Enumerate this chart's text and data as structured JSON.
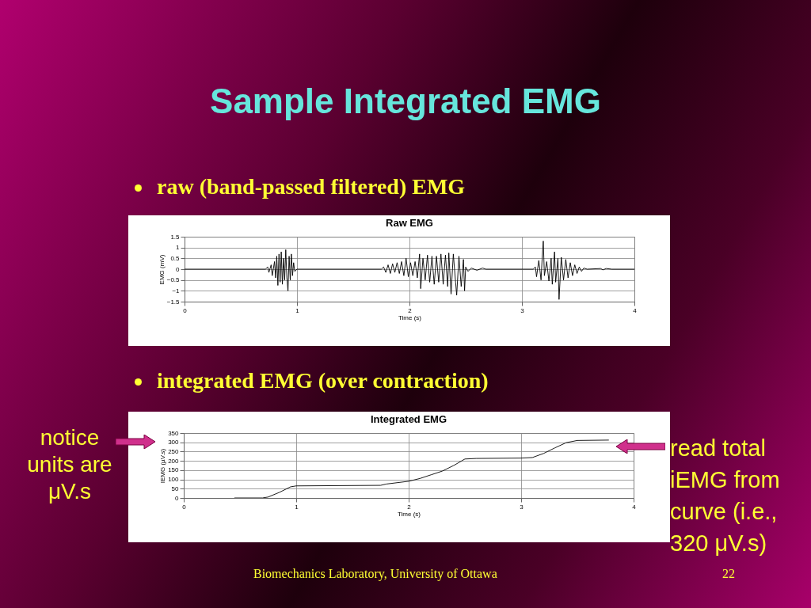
{
  "chart_data": [
    {
      "type": "line",
      "title": "Raw EMG",
      "xlabel": "Time (s)",
      "ylabel": "EMG (mV)",
      "xlim": [
        0,
        4
      ],
      "xticks": [
        0,
        1,
        2,
        3,
        4
      ],
      "ylim": [
        -1.5,
        1.5
      ],
      "yticks": [
        -1.5,
        -1,
        -0.5,
        0,
        0.5,
        1,
        1.5
      ],
      "grid": true,
      "annotations": [
        "Sample Integrated EMG",
        "raw (band-passed filtered) EMG",
        "Biomechanics Laboratory, University of Ottawa",
        "22"
      ],
      "series": [
        {
          "color": "#000000",
          "x": [
            0,
            0.5,
            0.72,
            0.74,
            0.75,
            0.77,
            0.78,
            0.8,
            0.81,
            0.82,
            0.83,
            0.84,
            0.85,
            0.86,
            0.87,
            0.88,
            0.89,
            0.9,
            0.91,
            0.92,
            0.93,
            0.94,
            0.95,
            0.96,
            0.97,
            0.98,
            1,
            1.5,
            1.75,
            1.77,
            1.79,
            1.81,
            1.83,
            1.85,
            1.87,
            1.89,
            1.91,
            1.93,
            1.95,
            1.97,
            1.99,
            2.01,
            2.03,
            2.05,
            2.07,
            2.09,
            2.1,
            2.12,
            2.14,
            2.16,
            2.18,
            2.2,
            2.22,
            2.24,
            2.26,
            2.28,
            2.3,
            2.32,
            2.34,
            2.35,
            2.37,
            2.39,
            2.41,
            2.42,
            2.44,
            2.46,
            2.48,
            2.49,
            2.5,
            2.52,
            2.55,
            2.6,
            2.65,
            2.68,
            3.1,
            3.12,
            3.13,
            3.15,
            3.17,
            3.18,
            3.19,
            3.2,
            3.22,
            3.24,
            3.26,
            3.27,
            3.29,
            3.3,
            3.32,
            3.33,
            3.35,
            3.37,
            3.39,
            3.41,
            3.43,
            3.45,
            3.47,
            3.49,
            3.51,
            3.53,
            3.55,
            3.58,
            3.7,
            3.72,
            3.75,
            3.8,
            4
          ],
          "values": [
            0,
            0,
            0,
            0.1,
            -0.15,
            0.2,
            -0.3,
            0.35,
            -0.4,
            0.6,
            -0.75,
            0.7,
            -0.6,
            0.8,
            -0.7,
            0.5,
            -0.5,
            0.9,
            -0.4,
            -1,
            0.6,
            -0.5,
            0.7,
            -0.3,
            0.3,
            -0.1,
            0,
            0,
            0,
            0.1,
            -0.15,
            0.2,
            -0.2,
            0.25,
            -0.15,
            0.3,
            -0.2,
            0.35,
            -0.3,
            0.5,
            -0.35,
            0.3,
            -0.3,
            0.35,
            -0.4,
            0.7,
            -0.9,
            0.5,
            -0.5,
            0.65,
            -0.6,
            0.6,
            -0.7,
            0.6,
            -0.6,
            0.7,
            -0.7,
            0.65,
            -0.8,
            0.75,
            -1.15,
            0.7,
            -0.6,
            -1.2,
            0.6,
            -0.8,
            0.45,
            -1,
            0.1,
            -0.1,
            0.05,
            -0.05,
            0.05,
            0,
            0,
            0.1,
            -0.35,
            0.4,
            -0.5,
            0.5,
            1.3,
            -0.3,
            0.35,
            -0.55,
            0.5,
            -0.7,
            0.8,
            -0.6,
            0.5,
            -1.4,
            0.55,
            -0.5,
            0.45,
            -0.4,
            0.3,
            -0.3,
            0.2,
            -0.2,
            0.1,
            -0.1,
            0.05,
            0,
            0.03,
            -0.03,
            0.03,
            0,
            0
          ]
        }
      ]
    },
    {
      "type": "line",
      "title": "Integrated EMG",
      "xlabel": "Time (s)",
      "ylabel": "IEMG (µV.s)",
      "xlim": [
        0,
        4
      ],
      "xticks": [
        0,
        1,
        2,
        3,
        4
      ],
      "ylim": [
        0,
        350
      ],
      "yticks": [
        0,
        50,
        100,
        150,
        200,
        250,
        300,
        350
      ],
      "grid": true,
      "annotations": [
        "integrated EMG (over contraction)",
        "notice units are μV.s",
        "read total iEMG from curve (i.e., 320 μV.s)"
      ],
      "series": [
        {
          "color": "#000000",
          "x": [
            0.45,
            0.7,
            0.75,
            0.85,
            0.95,
            1,
            1.5,
            1.75,
            1.8,
            2,
            2.1,
            2.2,
            2.3,
            2.4,
            2.5,
            2.6,
            3,
            3.1,
            3.2,
            3.3,
            3.4,
            3.5,
            3.78
          ],
          "values": [
            0,
            0,
            5,
            30,
            60,
            65,
            67,
            68,
            75,
            90,
            105,
            125,
            145,
            175,
            210,
            213,
            215,
            218,
            240,
            270,
            298,
            310,
            312
          ]
        }
      ]
    }
  ]
}
